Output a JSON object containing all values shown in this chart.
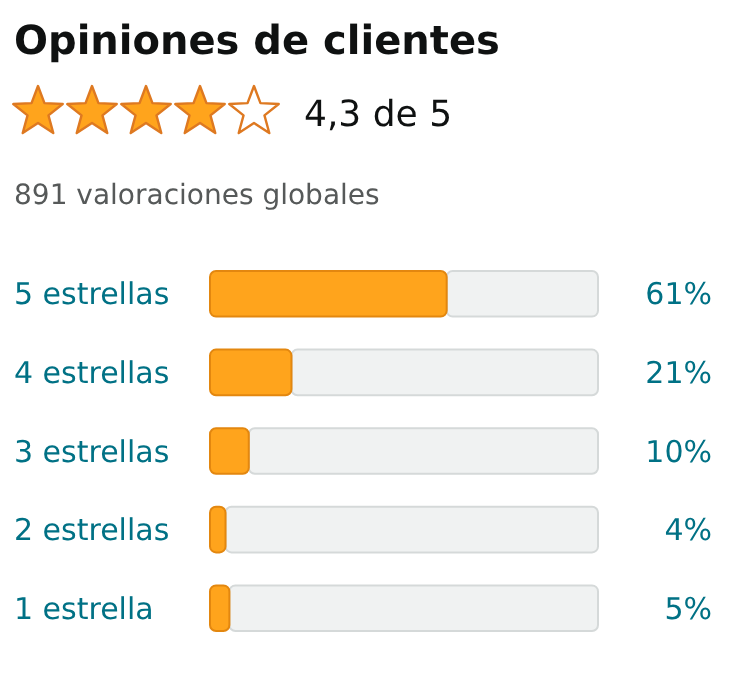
{
  "chart_data": {
    "type": "bar",
    "orientation": "horizontal",
    "title": "Opiniones de clientes",
    "subtitle": "4,3 de 5",
    "annotations": [
      "891 valoraciones globales"
    ],
    "categories": [
      "5 estrellas",
      "4 estrellas",
      "3 estrellas",
      "2 estrellas",
      "1 estrella"
    ],
    "values": [
      61,
      21,
      10,
      4,
      5
    ],
    "value_labels": [
      "61%",
      "21%",
      "10%",
      "4%",
      "5%"
    ],
    "color": "#ffa41c",
    "xlim": [
      0,
      100
    ],
    "tick_labels": "y"
  }
}
